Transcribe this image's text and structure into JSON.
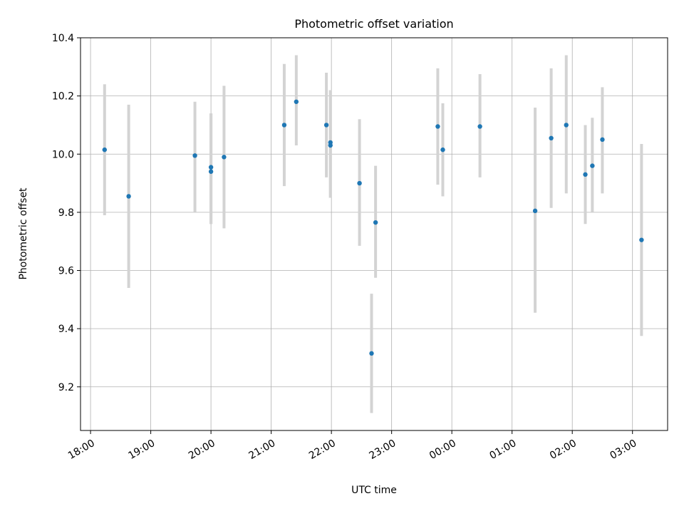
{
  "chart_data": {
    "type": "scatter",
    "title": "Photometric offset variation",
    "xlabel": "UTC time",
    "ylabel": "Photometric offset",
    "xlim": [
      "17:50",
      "27:35"
    ],
    "ylim": [
      9.05,
      10.4
    ],
    "grid": true,
    "x_ticks": [
      "18:00",
      "19:00",
      "20:00",
      "21:00",
      "22:00",
      "23:00",
      "00:00",
      "01:00",
      "02:00",
      "03:00"
    ],
    "y_ticks": [
      "9.2",
      "9.4",
      "9.6",
      "9.8",
      "10.0",
      "10.2",
      "10.4"
    ],
    "series": [
      {
        "marker_color": "#1f77b4",
        "errorbar_color": "#d3d3d3",
        "points": [
          {
            "x": "18:14",
            "y": 10.015,
            "err_low": 9.79,
            "err_high": 10.24
          },
          {
            "x": "18:38",
            "y": 9.855,
            "err_low": 9.54,
            "err_high": 10.17
          },
          {
            "x": "19:44",
            "y": 9.995,
            "err_low": 9.8,
            "err_high": 10.18
          },
          {
            "x": "20:00",
            "y": 9.955,
            "err_low": 9.76,
            "err_high": 10.14
          },
          {
            "x": "20:00",
            "y": 9.94,
            "err_low": 9.76,
            "err_high": 10.14
          },
          {
            "x": "20:13",
            "y": 9.99,
            "err_low": 9.745,
            "err_high": 10.235
          },
          {
            "x": "21:13",
            "y": 10.1,
            "err_low": 9.89,
            "err_high": 10.31
          },
          {
            "x": "21:25",
            "y": 10.18,
            "err_low": 10.03,
            "err_high": 10.34
          },
          {
            "x": "21:55",
            "y": 10.1,
            "err_low": 9.92,
            "err_high": 10.28
          },
          {
            "x": "21:59",
            "y": 10.04,
            "err_low": 9.85,
            "err_high": 10.22
          },
          {
            "x": "21:59",
            "y": 10.03,
            "err_low": 9.85,
            "err_high": 10.22
          },
          {
            "x": "22:28",
            "y": 9.9,
            "err_low": 9.685,
            "err_high": 10.12
          },
          {
            "x": "22:40",
            "y": 9.315,
            "err_low": 9.11,
            "err_high": 9.52
          },
          {
            "x": "22:44",
            "y": 9.765,
            "err_low": 9.575,
            "err_high": 9.96
          },
          {
            "x": "23:46",
            "y": 10.095,
            "err_low": 9.895,
            "err_high": 10.295
          },
          {
            "x": "23:51",
            "y": 10.015,
            "err_low": 9.855,
            "err_high": 10.175
          },
          {
            "x": "24:28",
            "y": 10.095,
            "err_low": 9.92,
            "err_high": 10.275
          },
          {
            "x": "25:23",
            "y": 9.805,
            "err_low": 9.455,
            "err_high": 10.16
          },
          {
            "x": "25:39",
            "y": 10.055,
            "err_low": 9.815,
            "err_high": 10.295
          },
          {
            "x": "25:54",
            "y": 10.1,
            "err_low": 9.865,
            "err_high": 10.34
          },
          {
            "x": "26:13",
            "y": 9.93,
            "err_low": 9.76,
            "err_high": 10.1
          },
          {
            "x": "26:20",
            "y": 9.96,
            "err_low": 9.8,
            "err_high": 10.125
          },
          {
            "x": "26:30",
            "y": 10.05,
            "err_low": 9.865,
            "err_high": 10.23
          },
          {
            "x": "27:09",
            "y": 9.705,
            "err_low": 9.375,
            "err_high": 10.035
          }
        ]
      }
    ]
  }
}
